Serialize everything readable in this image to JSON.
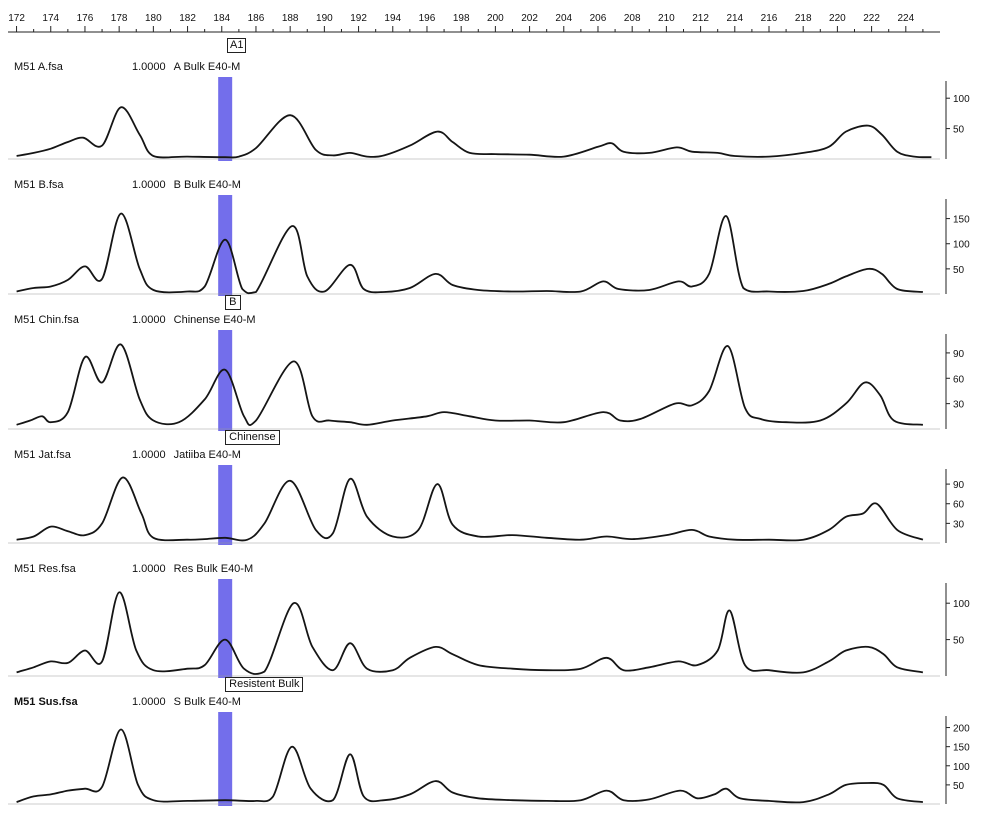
{
  "x_ruler": {
    "ticks": [
      "172",
      "174",
      "176",
      "178",
      "180",
      "182",
      "184",
      "186",
      "188",
      "190",
      "192",
      "194",
      "196",
      "198",
      "200",
      "202",
      "204",
      "206",
      "208",
      "210",
      "212",
      "214",
      "216",
      "218",
      "220",
      "222",
      "224"
    ],
    "marker_label": "A1"
  },
  "chart_data": [
    {
      "type": "line",
      "file": "M51 A.fsa",
      "sample_id": "1.0000",
      "sample": "A Bulk E40-M",
      "y_ticks": [
        "100",
        "50"
      ],
      "ylim": [
        0,
        125
      ],
      "xlim": [
        171.5,
        226
      ],
      "x": [
        172,
        173,
        174,
        175,
        175.9,
        177,
        178.1,
        179.2,
        180,
        182,
        184.2,
        185,
        186,
        188,
        189.5,
        190.5,
        191.5,
        192.5,
        193.5,
        195,
        196.6,
        197.5,
        198.5,
        200,
        202,
        204,
        206,
        206.8,
        207.5,
        209,
        210.6,
        211.5,
        213,
        214,
        216,
        218,
        219.5,
        220.5,
        221.8,
        222.6,
        223.5,
        224.5,
        225.5
      ],
      "values": [
        5,
        10,
        17,
        28,
        35,
        22,
        85,
        40,
        5,
        4,
        3,
        4,
        18,
        72,
        15,
        6,
        10,
        4,
        6,
        22,
        45,
        28,
        10,
        8,
        7,
        4,
        20,
        26,
        12,
        10,
        19,
        12,
        10,
        5,
        4,
        10,
        20,
        45,
        55,
        40,
        12,
        4,
        3
      ],
      "highlight": {
        "x": 184.2
      },
      "marker": null
    },
    {
      "type": "line",
      "file": "M51 B.fsa",
      "sample_id": "1.0000",
      "sample": "B Bulk E40-M",
      "y_ticks": [
        "150",
        "100",
        "50"
      ],
      "ylim": [
        0,
        185
      ],
      "xlim": [
        171.5,
        226
      ],
      "x": [
        172,
        173,
        174,
        175,
        176,
        177,
        178.1,
        179.2,
        180,
        182,
        183,
        184.2,
        185.2,
        186,
        188.1,
        189,
        190,
        191.5,
        192.3,
        193.5,
        195,
        196.5,
        197.5,
        199,
        201,
        203,
        205,
        206.3,
        207.2,
        209,
        210.7,
        211.5,
        212.5,
        213.5,
        214.5,
        216,
        218,
        219.5,
        220.5,
        221.8,
        222.6,
        223.5,
        225
      ],
      "values": [
        5,
        12,
        15,
        28,
        55,
        30,
        160,
        50,
        8,
        5,
        15,
        108,
        10,
        4,
        135,
        35,
        5,
        58,
        10,
        4,
        12,
        40,
        18,
        8,
        5,
        6,
        5,
        25,
        10,
        8,
        25,
        15,
        40,
        155,
        12,
        5,
        6,
        20,
        35,
        50,
        40,
        10,
        4
      ],
      "highlight": {
        "x": 184.2
      },
      "marker": {
        "label": "B",
        "x": 184.2
      }
    },
    {
      "type": "line",
      "file": "M51 Chin.fsa",
      "sample_id": "1.0000",
      "sample": "Chinense E40-M",
      "y_ticks": [
        "90",
        "60",
        "30"
      ],
      "ylim": [
        0,
        110
      ],
      "xlim": [
        171.5,
        226
      ],
      "x": [
        172,
        172.8,
        173.5,
        174,
        175,
        176,
        177,
        178.1,
        179.2,
        180,
        181.5,
        183,
        184.2,
        185.3,
        186,
        188.2,
        189.3,
        190.3,
        191.5,
        192.5,
        194,
        196,
        197,
        198.5,
        200,
        202,
        204,
        206.3,
        207.3,
        208.5,
        210.5,
        211.5,
        212.5,
        213.6,
        214.6,
        215.5,
        217,
        219,
        220.5,
        221.6,
        222.5,
        223.3,
        225
      ],
      "values": [
        5,
        10,
        15,
        8,
        20,
        85,
        55,
        100,
        35,
        10,
        8,
        35,
        70,
        15,
        10,
        80,
        15,
        10,
        8,
        5,
        10,
        15,
        20,
        15,
        10,
        10,
        8,
        20,
        10,
        12,
        30,
        28,
        45,
        98,
        25,
        12,
        8,
        10,
        30,
        55,
        40,
        10,
        5
      ],
      "highlight": {
        "x": 184.2
      },
      "marker": {
        "label": "Chinense",
        "x": 184.2
      }
    },
    {
      "type": "line",
      "file": "M51 Jat.fsa",
      "sample_id": "1.0000",
      "sample": "Jatiiba E40-M",
      "y_ticks": [
        "90",
        "60",
        "30"
      ],
      "ylim": [
        0,
        110
      ],
      "xlim": [
        171.5,
        226
      ],
      "x": [
        172,
        173,
        174,
        175,
        176,
        177,
        178.2,
        179.3,
        180,
        182,
        183,
        184.2,
        185.5,
        186.5,
        188,
        189.5,
        190.5,
        191.5,
        192.5,
        194,
        195.5,
        196.6,
        197.5,
        199,
        201,
        203,
        205,
        206.5,
        208,
        210,
        211.5,
        212.5,
        214,
        216,
        218,
        219.5,
        220.5,
        221.5,
        222.3,
        223.5,
        225
      ],
      "values": [
        5,
        10,
        25,
        18,
        12,
        30,
        100,
        45,
        8,
        5,
        6,
        8,
        5,
        30,
        95,
        20,
        15,
        98,
        40,
        10,
        20,
        90,
        28,
        10,
        12,
        8,
        5,
        10,
        6,
        12,
        20,
        10,
        5,
        5,
        5,
        20,
        40,
        45,
        60,
        20,
        5
      ],
      "highlight": {
        "x": 184.2
      },
      "marker": null
    },
    {
      "type": "line",
      "file": "M51 Res.fsa",
      "sample_id": "1.0000",
      "sample": "Res Bulk E40-M",
      "y_ticks": [
        "100",
        "50"
      ],
      "ylim": [
        0,
        125
      ],
      "xlim": [
        171.5,
        226
      ],
      "x": [
        172,
        173,
        174,
        175,
        176,
        177,
        178,
        179,
        180,
        182,
        183,
        184.2,
        185.3,
        186.5,
        188.2,
        189.3,
        190.5,
        191.5,
        192.5,
        194,
        195,
        196.5,
        197.5,
        199,
        201,
        203,
        205,
        206.5,
        207.5,
        209,
        210.7,
        211.8,
        213,
        213.7,
        214.6,
        216,
        218,
        219.5,
        220.5,
        221.8,
        222.7,
        223.5,
        225
      ],
      "values": [
        5,
        12,
        20,
        18,
        35,
        20,
        115,
        35,
        8,
        10,
        15,
        50,
        10,
        6,
        100,
        40,
        8,
        45,
        10,
        8,
        25,
        40,
        30,
        15,
        10,
        8,
        10,
        25,
        8,
        12,
        20,
        15,
        35,
        90,
        15,
        8,
        5,
        20,
        35,
        40,
        30,
        12,
        5
      ],
      "highlight": {
        "x": 184.2
      },
      "marker": {
        "label": "Resistent Bulk",
        "x": 184.2
      }
    },
    {
      "type": "line",
      "file": "M51 Sus.fsa",
      "sample_id": "1.0000",
      "sample": "S Bulk E40-M",
      "y_ticks": [
        "200",
        "150",
        "100",
        "50"
      ],
      "ylim": [
        0,
        225
      ],
      "xlim": [
        171.5,
        226
      ],
      "x": [
        172,
        173,
        174,
        175,
        176,
        177,
        178.1,
        179.1,
        180,
        182,
        184.2,
        186,
        187,
        188.1,
        189.2,
        190.5,
        191.5,
        192.3,
        193.5,
        195,
        196.5,
        197.5,
        199,
        201,
        203,
        205,
        206.5,
        207.5,
        209,
        210.8,
        211.8,
        212.8,
        213.5,
        214.3,
        216,
        218,
        219.5,
        220.5,
        221.8,
        222.7,
        223.5,
        225
      ],
      "values": [
        5,
        20,
        25,
        35,
        40,
        45,
        195,
        50,
        10,
        8,
        10,
        8,
        20,
        150,
        40,
        10,
        130,
        20,
        10,
        25,
        60,
        30,
        15,
        10,
        8,
        10,
        35,
        10,
        12,
        35,
        15,
        25,
        40,
        15,
        8,
        5,
        25,
        50,
        55,
        50,
        15,
        5
      ],
      "highlight": {
        "x": 184.2
      },
      "marker": null
    }
  ],
  "colors": {
    "trace": "#151515",
    "highlight": "#5b55e8",
    "highlight_edge": "#3b36c8"
  }
}
